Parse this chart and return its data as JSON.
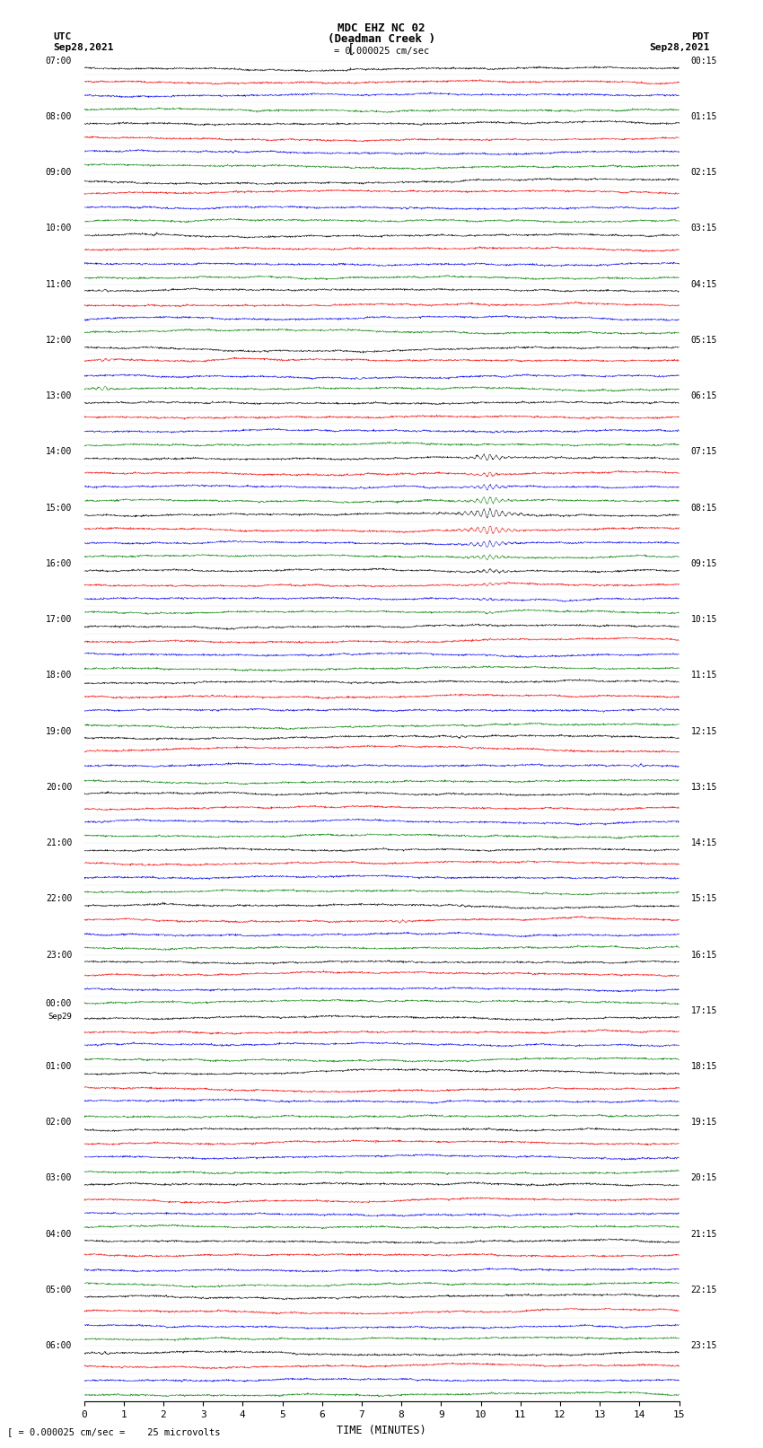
{
  "title_line1": "MDC EHZ NC 02",
  "title_line2": "(Deadman Creek )",
  "scale_text": "= 0.000025 cm/sec",
  "bottom_text": "= 0.000025 cm/sec =    25 microvolts",
  "left_header": "UTC",
  "left_date": "Sep28,2021",
  "right_header": "PDT",
  "right_date": "Sep28,2021",
  "xlabel": "TIME (MINUTES)",
  "left_labels": [
    "07:00",
    "08:00",
    "09:00",
    "10:00",
    "11:00",
    "12:00",
    "13:00",
    "14:00",
    "15:00",
    "16:00",
    "17:00",
    "18:00",
    "19:00",
    "20:00",
    "21:00",
    "22:00",
    "23:00",
    "Sep29\n00:00",
    "01:00",
    "02:00",
    "03:00",
    "04:00",
    "05:00",
    "06:00"
  ],
  "right_labels": [
    "00:15",
    "01:15",
    "02:15",
    "03:15",
    "04:15",
    "05:15",
    "06:15",
    "07:15",
    "08:15",
    "09:15",
    "10:15",
    "11:15",
    "12:15",
    "13:15",
    "14:15",
    "15:15",
    "16:15",
    "17:15",
    "18:15",
    "19:15",
    "20:15",
    "21:15",
    "22:15",
    "23:15"
  ],
  "colors": [
    "black",
    "red",
    "blue",
    "green"
  ],
  "bg_color": "#ffffff",
  "num_rows": 96,
  "x_min": 0,
  "x_max": 15,
  "x_ticks": [
    0,
    1,
    2,
    3,
    4,
    5,
    6,
    7,
    8,
    9,
    10,
    11,
    12,
    13,
    14,
    15
  ],
  "noise_scale": 0.06,
  "seed": 42
}
